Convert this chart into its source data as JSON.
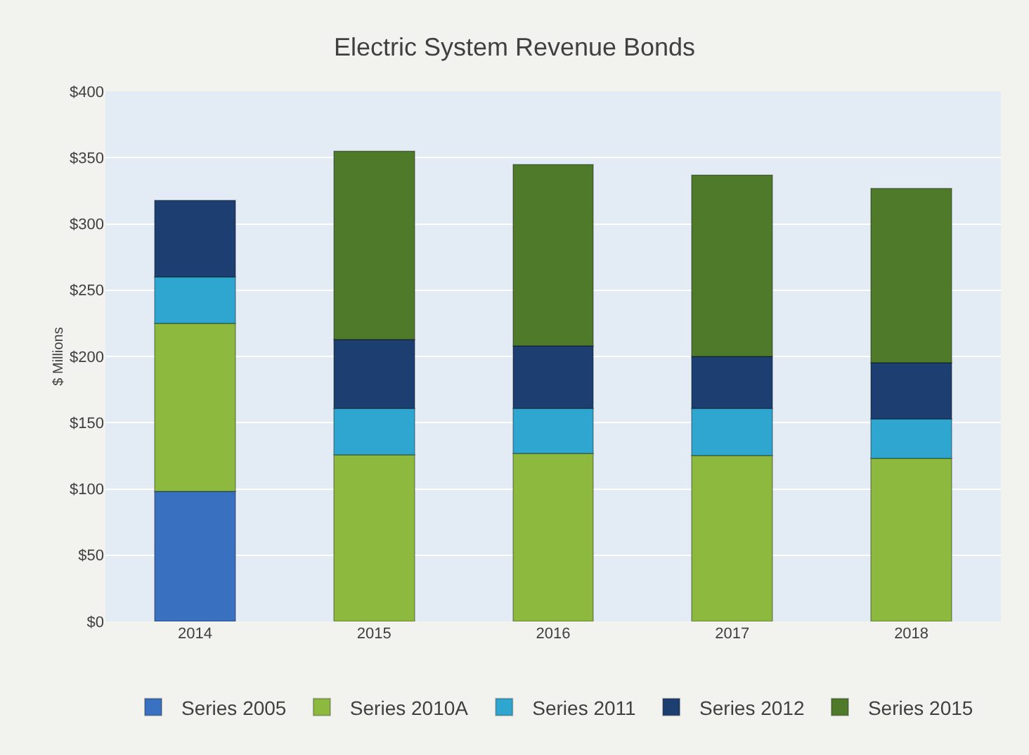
{
  "chart_data": {
    "type": "bar",
    "title": "Electric System Revenue Bonds",
    "ylabel": "$ Millions",
    "categories": [
      "2014",
      "2015",
      "2016",
      "2017",
      "2018"
    ],
    "stacked": true,
    "series": [
      {
        "name": "Series 2005",
        "color": "#3a70c0",
        "values": [
          98,
          null,
          null,
          null,
          null
        ]
      },
      {
        "name": "Series 2010A",
        "color": "#8dba3e",
        "values": [
          127,
          126,
          127,
          125,
          123
        ]
      },
      {
        "name": "Series 2011",
        "color": "#2fa6d0",
        "values": [
          35,
          35,
          34,
          36,
          30
        ]
      },
      {
        "name": "Series 2012",
        "color": "#1d3e70",
        "values": [
          58,
          52,
          47,
          39,
          42
        ]
      },
      {
        "name": "Series 2015",
        "color": "#4e7a2a",
        "values": [
          null,
          142,
          137,
          137,
          132
        ]
      }
    ],
    "ylim": [
      0,
      400
    ],
    "yticks": [
      {
        "value": 0,
        "label": "$0"
      },
      {
        "value": 50,
        "label": "$50"
      },
      {
        "value": 100,
        "label": "$100"
      },
      {
        "value": 150,
        "label": "$150"
      },
      {
        "value": 200,
        "label": "$200"
      },
      {
        "value": 250,
        "label": "$250"
      },
      {
        "value": 300,
        "label": "$300"
      },
      {
        "value": 350,
        "label": "$350"
      },
      {
        "value": 400,
        "label": "$400"
      }
    ],
    "grid": "y",
    "legend": "bottom"
  }
}
